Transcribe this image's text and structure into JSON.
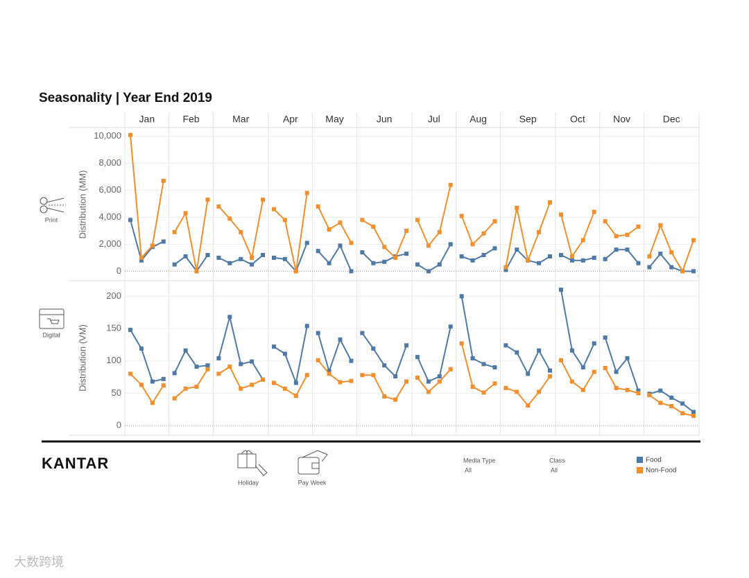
{
  "chart_data": {
    "type": "line",
    "title": "Seasonality | Year End 2019",
    "categories": [
      "Jan",
      "Feb",
      "Mar",
      "Apr",
      "May",
      "Jun",
      "Jul",
      "Aug",
      "Sep",
      "Oct",
      "Nov",
      "Dec"
    ],
    "series": [
      {
        "name": "Food",
        "color": "#4e79a7"
      },
      {
        "name": "Non-Food",
        "color": "#f28e2b"
      }
    ],
    "grid": true,
    "panels": [
      {
        "label": "Print",
        "y_label": "Distribution (MM)",
        "ylim": [
          -700,
          10600
        ],
        "yticks": [
          0,
          {
            "value": 2000,
            "label": "2,000"
          },
          {
            "value": 4000,
            "label": "4,000"
          },
          {
            "value": 6000,
            "label": "6,000"
          },
          {
            "value": 8000,
            "label": "8,000"
          },
          {
            "value": 10000,
            "label": "10,000"
          }
        ],
        "values": [
          [
            [
              3800,
              800,
              1800,
              2200
            ],
            [
              500,
              1100,
              0,
              1200
            ],
            [
              1000,
              600,
              900,
              500,
              1200
            ],
            [
              1000,
              900,
              0,
              2100
            ],
            [
              1500,
              600,
              1900,
              0
            ],
            [
              1400,
              600,
              700,
              1100,
              1300
            ],
            [
              500,
              0,
              500,
              2000
            ],
            [
              1100,
              800,
              1200,
              1700
            ],
            [
              100,
              1600,
              800,
              600,
              1100
            ],
            [
              1200,
              800,
              800,
              1000
            ],
            [
              900,
              1600,
              1600,
              600
            ],
            [
              300,
              1300,
              300,
              0,
              0
            ]
          ],
          [
            [
              10100,
              1000,
              1900,
              6700
            ],
            [
              2900,
              4300,
              0,
              5300
            ],
            [
              4800,
              3900,
              2900,
              1000,
              5300
            ],
            [
              4600,
              3800,
              0,
              5800
            ],
            [
              4800,
              3100,
              3600,
              2100
            ],
            [
              3800,
              3300,
              1800,
              1000,
              3000
            ],
            [
              3800,
              1900,
              2900,
              6400
            ],
            [
              4100,
              2000,
              2800,
              3700
            ],
            [
              300,
              4700,
              800,
              2900,
              5100
            ],
            [
              4200,
              1100,
              2300,
              4400
            ],
            [
              3700,
              2600,
              2700,
              3300
            ],
            [
              1100,
              3400,
              1400,
              0,
              2300
            ]
          ]
        ]
      },
      {
        "label": "Digital",
        "y_label": "Distribution (VM)",
        "ylim": [
          -15,
          224
        ],
        "yticks": [
          0,
          50,
          100,
          150,
          200
        ],
        "values": [
          [
            [
              148,
              119,
              68,
              72
            ],
            [
              81,
              116,
              91,
              93
            ],
            [
              104,
              168,
              95,
              99,
              71
            ],
            [
              122,
              111,
              66,
              154
            ],
            [
              143,
              84,
              133,
              100
            ],
            [
              143,
              119,
              93,
              76,
              124
            ],
            [
              106,
              68,
              76,
              153
            ],
            [
              200,
              104,
              95,
              90
            ],
            [
              124,
              113,
              80,
              116,
              85
            ],
            [
              210,
              116,
              90,
              127
            ],
            [
              136,
              83,
              104,
              54
            ],
            [
              49,
              54,
              43,
              34,
              21
            ]
          ],
          [
            [
              80,
              63,
              35,
              62
            ],
            [
              42,
              57,
              60,
              87
            ],
            [
              80,
              91,
              57,
              63,
              71
            ],
            [
              66,
              57,
              46,
              78
            ],
            [
              101,
              80,
              67,
              69
            ],
            [
              78,
              78,
              45,
              40,
              68
            ],
            [
              74,
              52,
              68,
              87
            ],
            [
              127,
              60,
              51,
              65
            ],
            [
              58,
              52,
              31,
              52,
              76
            ],
            [
              101,
              68,
              55,
              83
            ],
            [
              89,
              58,
              55,
              50
            ],
            [
              47,
              35,
              30,
              19,
              15
            ]
          ]
        ]
      }
    ]
  },
  "footer": {
    "brand": "KANTAR",
    "icons": [
      "Holiday",
      "Pay Week"
    ],
    "filters": [
      {
        "label": "Media Type",
        "value": "All"
      },
      {
        "label": "Class",
        "value": "All"
      }
    ]
  },
  "watermark": "大数跨境"
}
